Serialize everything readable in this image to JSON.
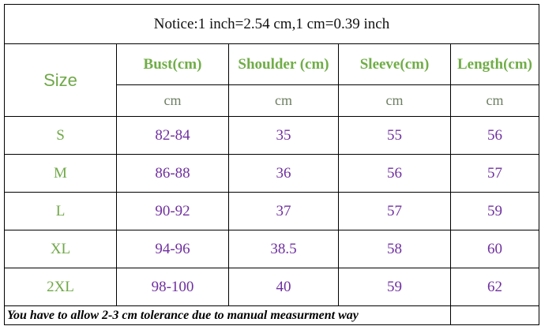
{
  "notice": "Notice:1 inch=2.54 cm,1 cm=0.39 inch",
  "header": {
    "size": "Size",
    "columns": [
      "Bust(cm)",
      "Shoulder (cm)",
      "Sleeve(cm)",
      "Length(cm)"
    ]
  },
  "units": [
    "cm",
    "cm",
    "cm",
    "cm"
  ],
  "rows": [
    [
      "S",
      "82-84",
      "35",
      "55",
      "56"
    ],
    [
      "M",
      "86-88",
      "36",
      "56",
      "57"
    ],
    [
      "L",
      "90-92",
      "37",
      "57",
      "59"
    ],
    [
      "XL",
      "94-96",
      "38.5",
      "58",
      "60"
    ],
    [
      "2XL",
      "98-100",
      "40",
      "59",
      "62"
    ]
  ],
  "footer": "You have to allow 2-3 cm tolerance due to manual measurment way"
}
